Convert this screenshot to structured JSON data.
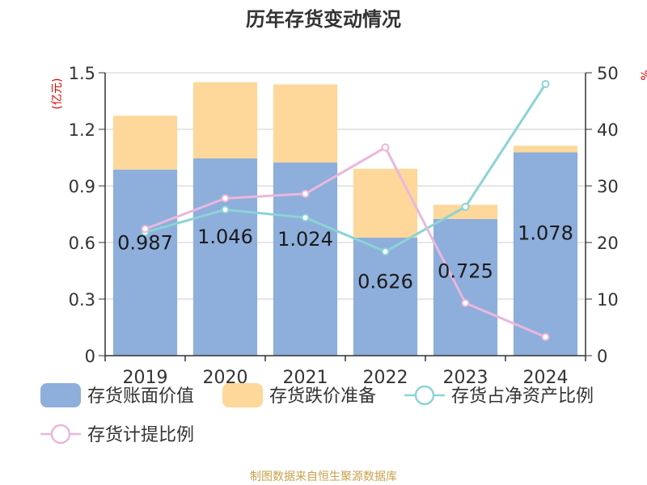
{
  "chart_data": {
    "type": "bar",
    "title": "历年存货变动情况",
    "left_unit": "(亿元)",
    "right_unit": "%",
    "categories": [
      "2019",
      "2020",
      "2021",
      "2022",
      "2023",
      "2024"
    ],
    "left_ticks": [
      "0",
      "0.3",
      "0.6",
      "0.9",
      "1.2",
      "1.5"
    ],
    "right_ticks": [
      "0",
      "10",
      "20",
      "30",
      "40",
      "50"
    ],
    "ylim": [
      0,
      1.5
    ],
    "y2lim": [
      0,
      50
    ],
    "grid": true,
    "series": [
      {
        "name": "存货账面价值",
        "kind": "bar",
        "stack": "main",
        "color": "#8eaedb",
        "values": [
          0.987,
          1.046,
          1.024,
          0.626,
          0.725,
          1.078
        ],
        "labels": [
          "0.987",
          "1.046",
          "1.024",
          "0.626",
          "0.725",
          "1.078"
        ]
      },
      {
        "name": "存货跌价准备",
        "kind": "bar",
        "stack": "main",
        "color": "#fdd89a",
        "values": [
          0.285,
          0.404,
          0.414,
          0.365,
          0.075,
          0.035
        ]
      },
      {
        "name": "存货占净资产比例",
        "kind": "line",
        "axis": "right",
        "color": "#8cd3d6",
        "values": [
          21.8,
          25.8,
          24.4,
          18.4,
          26.3,
          48.0
        ]
      },
      {
        "name": "存货计提比例",
        "kind": "line",
        "axis": "right",
        "color": "#e9b8dc",
        "values": [
          22.4,
          27.8,
          28.6,
          36.8,
          9.3,
          3.3
        ]
      }
    ],
    "legend_position": "bottom"
  },
  "footer": {
    "source": "制图数据来自恒生聚源数据库"
  }
}
